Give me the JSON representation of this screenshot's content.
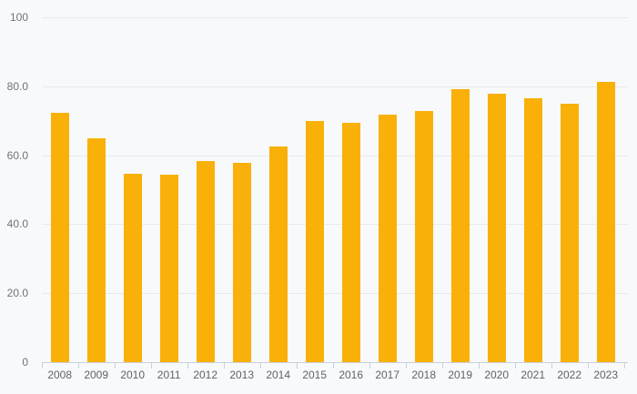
{
  "chart_data": {
    "type": "bar",
    "title": "",
    "xlabel": "",
    "ylabel": "",
    "categories": [
      "2008",
      "2009",
      "2010",
      "2011",
      "2012",
      "2013",
      "2014",
      "2015",
      "2016",
      "2017",
      "2018",
      "2019",
      "2020",
      "2021",
      "2022",
      "2023"
    ],
    "values": [
      72.3,
      64.9,
      54.5,
      54.4,
      58.2,
      57.8,
      62.4,
      69.9,
      69.3,
      71.7,
      72.8,
      79.2,
      77.9,
      76.6,
      75.0,
      81.1
    ],
    "ylim": [
      0,
      100
    ],
    "yticks": [
      {
        "value": 0,
        "label": "0"
      },
      {
        "value": 20,
        "label": "20.0"
      },
      {
        "value": 40,
        "label": "40.0"
      },
      {
        "value": 60,
        "label": "60.0"
      },
      {
        "value": 80,
        "label": "80.0"
      },
      {
        "value": 100,
        "label": "100"
      }
    ],
    "grid": true,
    "legend": false,
    "colors": {
      "bar": "#f9b008",
      "background": "#f8f9fa",
      "gridline": "#e8e9eb",
      "axis": "#c9d0da",
      "x_label_text": "#5f6368",
      "y_label_text": "#6e7379"
    }
  }
}
